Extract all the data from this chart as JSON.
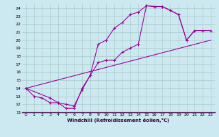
{
  "xlabel": "Windchill (Refroidissement éolien,°C)",
  "bg_color": "#cce8f0",
  "line_color": "#990099",
  "grid_color": "#aacccc",
  "xlim": [
    -0.5,
    23.5
  ],
  "ylim": [
    11,
    24.5
  ],
  "xticks": [
    0,
    1,
    2,
    3,
    4,
    5,
    6,
    7,
    8,
    9,
    10,
    11,
    12,
    13,
    14,
    15,
    16,
    17,
    18,
    19,
    20,
    21,
    22,
    23
  ],
  "yticks": [
    11,
    12,
    13,
    14,
    15,
    16,
    17,
    18,
    19,
    20,
    21,
    22,
    23,
    24
  ],
  "line1_x": [
    0,
    1,
    2,
    3,
    4,
    5,
    6,
    7,
    8,
    9,
    10,
    11,
    12,
    13,
    14,
    15,
    16,
    17,
    18,
    19,
    20,
    21
  ],
  "line1_y": [
    14,
    13,
    12.8,
    12.2,
    12.2,
    11.5,
    11.5,
    14.0,
    15.6,
    19.5,
    20.0,
    21.5,
    22.2,
    23.2,
    23.5,
    24.3,
    24.2,
    24.2,
    23.7,
    23.2,
    20.0,
    21.2
  ],
  "line2_x": [
    0,
    3,
    4,
    5,
    6,
    7,
    8,
    9,
    10,
    11,
    12,
    13,
    14,
    15,
    16,
    17,
    18,
    19,
    20,
    21,
    22,
    23
  ],
  "line2_y": [
    14,
    12.8,
    12.2,
    12.0,
    11.8,
    13.8,
    15.6,
    17.2,
    17.5,
    17.5,
    18.5,
    19.0,
    19.5,
    24.3,
    24.2,
    24.2,
    23.7,
    23.2,
    20.0,
    21.2,
    21.2,
    21.2
  ],
  "line3_x": [
    0,
    23
  ],
  "line3_y": [
    14,
    20
  ]
}
